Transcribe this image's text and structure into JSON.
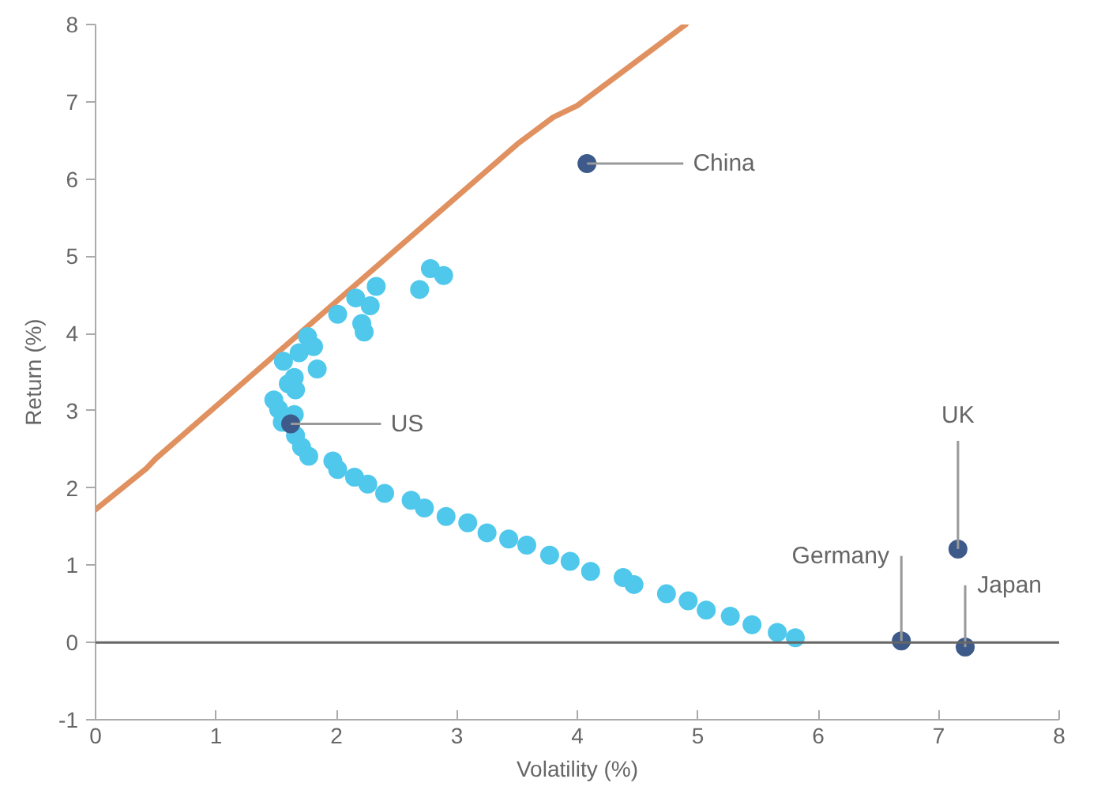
{
  "chart_data": {
    "type": "scatter",
    "xlabel": "Volatility (%)",
    "ylabel": "Return (%)",
    "xlim": [
      0,
      8
    ],
    "ylim": [
      -1,
      8
    ],
    "xticks": [
      0,
      1,
      2,
      3,
      4,
      5,
      6,
      7,
      8
    ],
    "yticks": [
      -1,
      0,
      1,
      2,
      3,
      4,
      5,
      6,
      7,
      8
    ],
    "grid": false,
    "ref_lines": [
      {
        "axis": "y",
        "value": 0,
        "color": "#666666"
      }
    ],
    "series": [
      {
        "type": "line",
        "marker": "none",
        "color": "#e0915f",
        "x": [
          0,
          0.42,
          0.5,
          3.5,
          3.8,
          4.0,
          4.9
        ],
        "values": [
          1.72,
          2.25,
          2.38,
          6.45,
          6.8,
          6.95,
          8.0
        ]
      },
      {
        "marker": "circle",
        "color": "#4fc8ec",
        "x": [
          1.56,
          1.76,
          1.69,
          1.81,
          2.01,
          2.16,
          2.33,
          2.28,
          2.21,
          2.23,
          2.69,
          2.78,
          2.89,
          1.65,
          1.6,
          1.66,
          1.84,
          1.48,
          1.52,
          1.55,
          1.65,
          1.66,
          1.71,
          1.77,
          1.97,
          2.01,
          2.15,
          2.26,
          2.4,
          2.62,
          2.73,
          2.91,
          3.09,
          3.25,
          3.43,
          3.58,
          3.77,
          3.94,
          4.11,
          4.38,
          4.47,
          4.74,
          4.92,
          5.07,
          5.27,
          5.45,
          5.66,
          5.81
        ],
        "values": [
          3.64,
          3.96,
          3.75,
          3.83,
          4.25,
          4.46,
          4.61,
          4.36,
          4.13,
          4.02,
          4.57,
          4.84,
          4.75,
          3.43,
          3.35,
          3.27,
          3.54,
          3.14,
          3.02,
          2.85,
          2.95,
          2.68,
          2.53,
          2.41,
          2.35,
          2.24,
          2.14,
          2.05,
          1.93,
          1.84,
          1.74,
          1.63,
          1.55,
          1.42,
          1.34,
          1.26,
          1.13,
          1.05,
          0.92,
          0.84,
          0.75,
          0.63,
          0.54,
          0.42,
          0.34,
          0.23,
          0.13,
          0.06
        ]
      },
      {
        "marker": "circle",
        "color": "#3d5a8a",
        "x": [
          4.08,
          1.62,
          7.16,
          6.69,
          7.22
        ],
        "values": [
          6.2,
          2.83,
          1.21,
          0.02,
          -0.06
        ]
      }
    ],
    "annotations": [
      {
        "text": "China",
        "x": 4.08,
        "y": 6.2
      },
      {
        "text": "US",
        "x": 1.62,
        "y": 2.83
      },
      {
        "text": "UK",
        "x": 7.16,
        "y": 1.21
      },
      {
        "text": "Germany",
        "x": 6.69,
        "y": 0.02
      },
      {
        "text": "Japan",
        "x": 7.22,
        "y": -0.06
      }
    ]
  }
}
